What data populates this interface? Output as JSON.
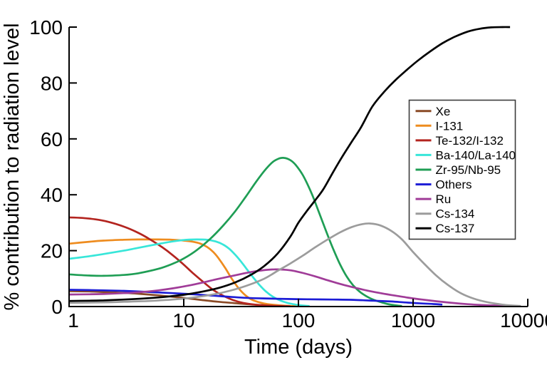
{
  "chart_data": {
    "type": "line",
    "title": "",
    "xlabel": "Time (days)",
    "ylabel": "% contribution to radiation level",
    "x_scale": "log",
    "xlim": [
      1,
      10000
    ],
    "ylim": [
      0,
      100
    ],
    "x_ticks": [
      1,
      10,
      100,
      1000,
      10000
    ],
    "y_ticks": [
      0,
      20,
      40,
      60,
      80,
      100
    ],
    "grid": false,
    "legend": {
      "position": "right-middle",
      "border_color": "#3c3c3c",
      "background": "#ffffff"
    },
    "axis_color": "#000000",
    "background_color": "#ffffff",
    "series": [
      {
        "name": "Xe",
        "color": "#8a4a26",
        "points": [
          [
            1,
            5.5
          ],
          [
            1.5,
            5.4
          ],
          [
            2,
            5.2
          ],
          [
            3,
            4.9
          ],
          [
            4,
            4.6
          ],
          [
            6,
            4.0
          ],
          [
            8,
            3.5
          ],
          [
            10,
            3.1
          ],
          [
            14,
            2.4
          ],
          [
            20,
            1.7
          ],
          [
            28,
            1.2
          ],
          [
            40,
            0.7
          ],
          [
            60,
            0.35
          ],
          [
            80,
            0.2
          ],
          [
            100,
            0.1
          ]
        ]
      },
      {
        "name": "I-131",
        "color": "#ee8c1f",
        "points": [
          [
            1,
            22.5
          ],
          [
            1.5,
            23.2
          ],
          [
            2,
            23.6
          ],
          [
            3,
            23.9
          ],
          [
            4,
            24.0
          ],
          [
            6,
            24.0
          ],
          [
            8,
            23.9
          ],
          [
            10,
            23.6
          ],
          [
            12,
            23.2
          ],
          [
            14,
            22.5
          ],
          [
            16,
            21.3
          ],
          [
            18,
            19.6
          ],
          [
            20,
            17.4
          ],
          [
            23,
            13.8
          ],
          [
            26,
            10.2
          ],
          [
            30,
            6.6
          ],
          [
            35,
            3.8
          ],
          [
            40,
            2.3
          ],
          [
            50,
            1.1
          ],
          [
            65,
            0.5
          ],
          [
            85,
            0.2
          ],
          [
            100,
            0.1
          ]
        ]
      },
      {
        "name": "Te-132/I-132",
        "color": "#b3241f",
        "points": [
          [
            1,
            31.9
          ],
          [
            1.3,
            31.7
          ],
          [
            1.7,
            31.2
          ],
          [
            2.2,
            30.3
          ],
          [
            3,
            28.6
          ],
          [
            4,
            26.4
          ],
          [
            5,
            24.2
          ],
          [
            6.5,
            21.2
          ],
          [
            8,
            18.4
          ],
          [
            10,
            15.0
          ],
          [
            12,
            12.0
          ],
          [
            15,
            8.6
          ],
          [
            18,
            6.0
          ],
          [
            22,
            3.9
          ],
          [
            27,
            2.3
          ],
          [
            33,
            1.3
          ],
          [
            42,
            0.7
          ],
          [
            55,
            0.35
          ],
          [
            70,
            0.2
          ],
          [
            85,
            0.1
          ]
        ]
      },
      {
        "name": "Ba-140/La-140",
        "color": "#38e6d9",
        "points": [
          [
            1,
            17.1
          ],
          [
            1.5,
            18.0
          ],
          [
            2,
            18.8
          ],
          [
            3,
            20.0
          ],
          [
            4,
            21.0
          ],
          [
            6,
            22.4
          ],
          [
            8,
            23.3
          ],
          [
            10,
            23.8
          ],
          [
            13,
            24.0
          ],
          [
            16,
            23.9
          ],
          [
            19,
            23.3
          ],
          [
            22,
            22.2
          ],
          [
            25,
            20.6
          ],
          [
            28,
            18.6
          ],
          [
            32,
            15.8
          ],
          [
            36,
            13.0
          ],
          [
            40,
            10.6
          ],
          [
            46,
            7.6
          ],
          [
            52,
            5.4
          ],
          [
            60,
            3.5
          ],
          [
            70,
            2.1
          ],
          [
            82,
            1.2
          ],
          [
            95,
            0.7
          ],
          [
            110,
            0.35
          ],
          [
            125,
            0.15
          ]
        ]
      },
      {
        "name": "Zr-95/Nb-95",
        "color": "#1f9e55",
        "points": [
          [
            1,
            11.5
          ],
          [
            1.5,
            11.1
          ],
          [
            2,
            11.0
          ],
          [
            3,
            11.3
          ],
          [
            4,
            11.9
          ],
          [
            6,
            13.5
          ],
          [
            8,
            15.3
          ],
          [
            10,
            17.2
          ],
          [
            13,
            20.2
          ],
          [
            17,
            24.2
          ],
          [
            22,
            28.9
          ],
          [
            28,
            34.0
          ],
          [
            35,
            39.5
          ],
          [
            43,
            44.8
          ],
          [
            52,
            49.2
          ],
          [
            60,
            51.8
          ],
          [
            68,
            53.0
          ],
          [
            75,
            53.2
          ],
          [
            85,
            52.4
          ],
          [
            95,
            50.6
          ],
          [
            110,
            46.8
          ],
          [
            130,
            40.6
          ],
          [
            150,
            34.0
          ],
          [
            175,
            26.8
          ],
          [
            200,
            20.8
          ],
          [
            230,
            15.2
          ],
          [
            265,
            10.6
          ],
          [
            300,
            7.6
          ],
          [
            350,
            5.0
          ],
          [
            420,
            3.0
          ],
          [
            500,
            1.8
          ],
          [
            600,
            0.9
          ],
          [
            700,
            0.45
          ],
          [
            800,
            0.2
          ]
        ]
      },
      {
        "name": "Others",
        "color": "#1c1cd6",
        "points": [
          [
            1,
            6.0
          ],
          [
            2,
            5.8
          ],
          [
            3,
            5.6
          ],
          [
            5,
            5.2
          ],
          [
            8,
            4.8
          ],
          [
            12,
            4.4
          ],
          [
            18,
            3.9
          ],
          [
            25,
            3.5
          ],
          [
            35,
            3.1
          ],
          [
            50,
            2.9
          ],
          [
            80,
            2.7
          ],
          [
            120,
            2.6
          ],
          [
            200,
            2.5
          ],
          [
            300,
            2.4
          ],
          [
            450,
            2.1
          ],
          [
            650,
            1.8
          ],
          [
            900,
            1.4
          ],
          [
            1200,
            1.1
          ],
          [
            1500,
            0.9
          ],
          [
            1800,
            0.7
          ]
        ]
      },
      {
        "name": "Ru",
        "color": "#a03c98",
        "points": [
          [
            1,
            4.3
          ],
          [
            1.5,
            4.4
          ],
          [
            2,
            4.5
          ],
          [
            3,
            4.8
          ],
          [
            4,
            5.1
          ],
          [
            6,
            5.8
          ],
          [
            8,
            6.5
          ],
          [
            11,
            7.5
          ],
          [
            15,
            8.7
          ],
          [
            20,
            9.9
          ],
          [
            26,
            10.9
          ],
          [
            33,
            11.8
          ],
          [
            42,
            12.6
          ],
          [
            52,
            13.1
          ],
          [
            62,
            13.3
          ],
          [
            75,
            13.2
          ],
          [
            90,
            12.8
          ],
          [
            110,
            12.0
          ],
          [
            140,
            10.8
          ],
          [
            180,
            9.4
          ],
          [
            230,
            8.1
          ],
          [
            300,
            6.9
          ],
          [
            400,
            5.7
          ],
          [
            520,
            4.8
          ],
          [
            700,
            3.9
          ],
          [
            900,
            3.2
          ],
          [
            1200,
            2.5
          ],
          [
            1600,
            1.9
          ],
          [
            2200,
            1.3
          ],
          [
            3000,
            0.85
          ],
          [
            4000,
            0.55
          ],
          [
            5500,
            0.35
          ],
          [
            7000,
            0.25
          ],
          [
            8200,
            0.2
          ]
        ]
      },
      {
        "name": "Cs-134",
        "color": "#9c9c9c",
        "points": [
          [
            1,
            1.3
          ],
          [
            2,
            1.5
          ],
          [
            3,
            1.7
          ],
          [
            5,
            2.0
          ],
          [
            8,
            2.5
          ],
          [
            12,
            3.2
          ],
          [
            18,
            4.3
          ],
          [
            25,
            5.6
          ],
          [
            35,
            7.4
          ],
          [
            50,
            9.9
          ],
          [
            66,
            12.8
          ],
          [
            85,
            15.4
          ],
          [
            110,
            18.3
          ],
          [
            140,
            21.2
          ],
          [
            180,
            24.0
          ],
          [
            230,
            26.5
          ],
          [
            290,
            28.4
          ],
          [
            360,
            29.5
          ],
          [
            430,
            29.7
          ],
          [
            520,
            29.0
          ],
          [
            650,
            27.0
          ],
          [
            800,
            24.0
          ],
          [
            1000,
            19.5
          ],
          [
            1250,
            15.3
          ],
          [
            1600,
            11.0
          ],
          [
            2000,
            7.8
          ],
          [
            2600,
            4.8
          ],
          [
            3400,
            2.8
          ],
          [
            4500,
            1.5
          ],
          [
            6000,
            0.7
          ],
          [
            7500,
            0.35
          ],
          [
            8700,
            0.2
          ]
        ]
      },
      {
        "name": "Cs-137",
        "color": "#000000",
        "points": [
          [
            1,
            2.0
          ],
          [
            1.5,
            2.1
          ],
          [
            2,
            2.2
          ],
          [
            3,
            2.5
          ],
          [
            5,
            3.0
          ],
          [
            7,
            3.5
          ],
          [
            10,
            4.2
          ],
          [
            14,
            5.2
          ],
          [
            20,
            6.6
          ],
          [
            28,
            8.6
          ],
          [
            38,
            11.2
          ],
          [
            50,
            14.4
          ],
          [
            66,
            19.0
          ],
          [
            85,
            25.0
          ],
          [
            100,
            30.0
          ],
          [
            120,
            34.5
          ],
          [
            140,
            38.0
          ],
          [
            165,
            42.0
          ],
          [
            200,
            48.0
          ],
          [
            240,
            53.5
          ],
          [
            290,
            58.8
          ],
          [
            350,
            64.0
          ],
          [
            440,
            71.5
          ],
          [
            550,
            76.5
          ],
          [
            700,
            81.0
          ],
          [
            900,
            85.0
          ],
          [
            1100,
            88.0
          ],
          [
            1400,
            91.2
          ],
          [
            1800,
            94.2
          ],
          [
            2300,
            96.5
          ],
          [
            3000,
            98.4
          ],
          [
            3800,
            99.4
          ],
          [
            4800,
            99.9
          ],
          [
            6000,
            100.0
          ],
          [
            7000,
            100.0
          ]
        ]
      }
    ]
  }
}
